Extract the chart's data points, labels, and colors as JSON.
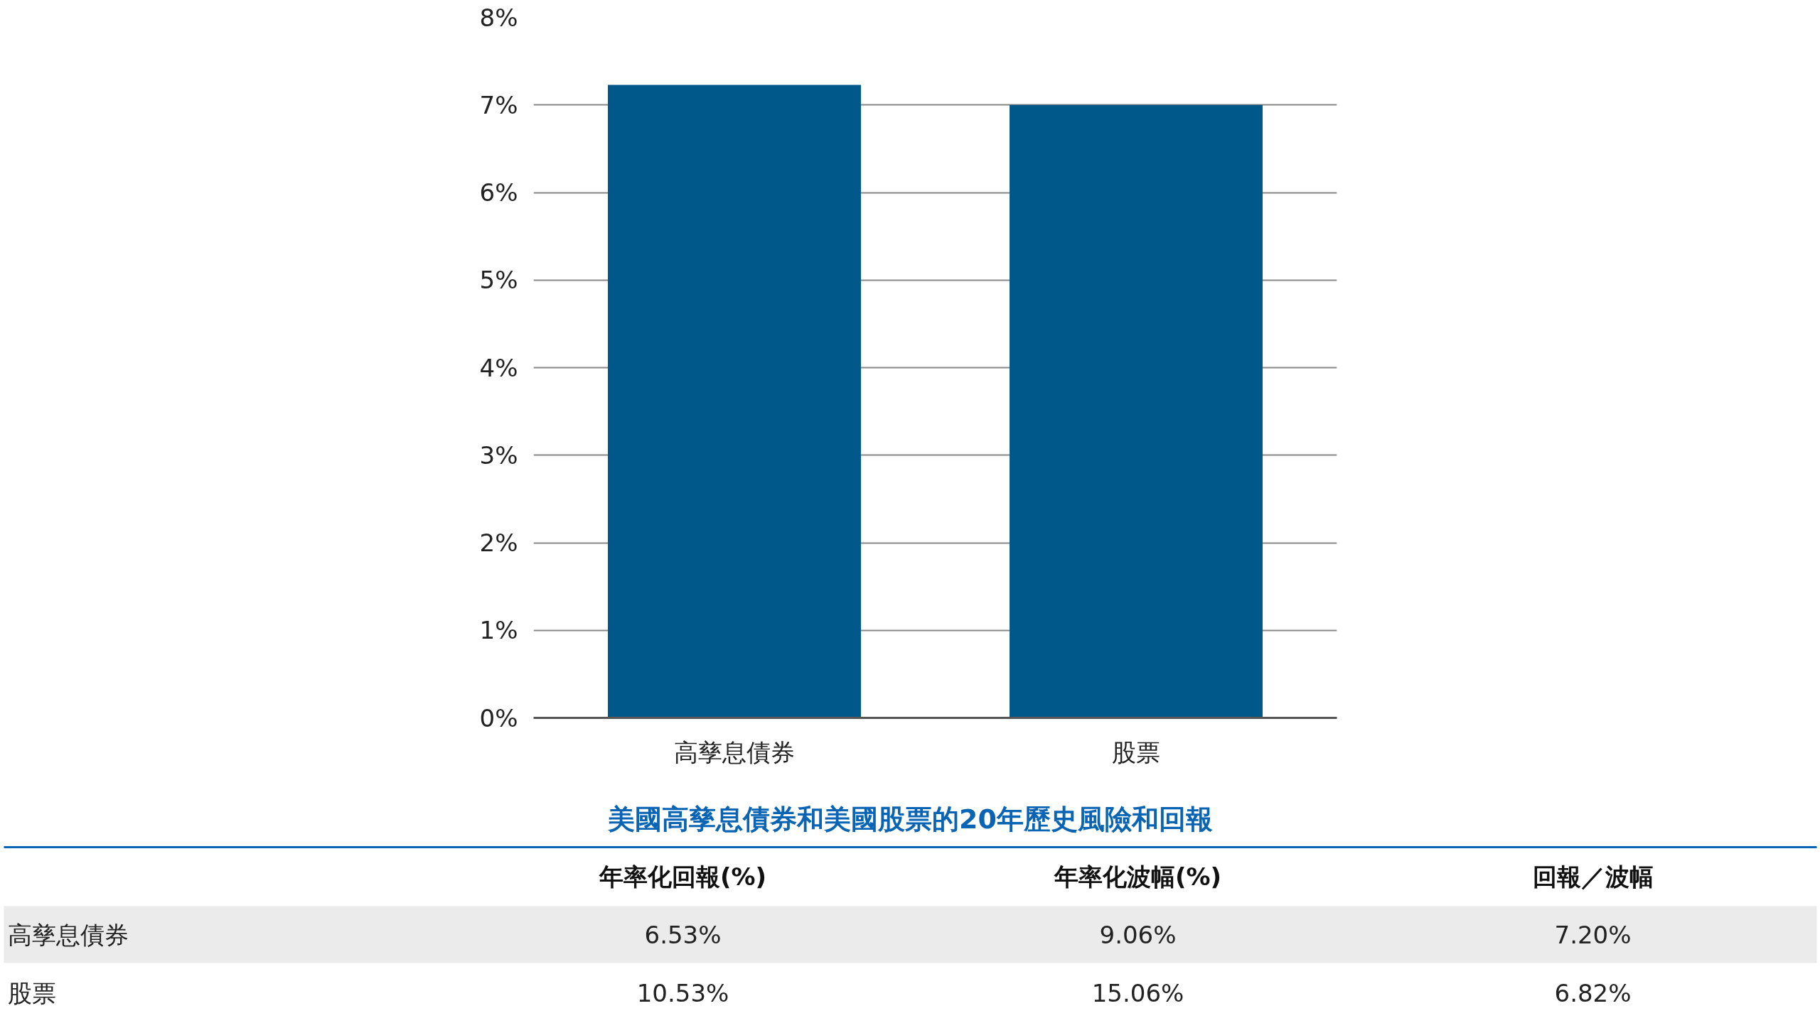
{
  "chart_data": [
    {
      "type": "bar",
      "categories": [
        "高孳息債券",
        "股票"
      ],
      "values": [
        7.23,
        7.0
      ],
      "color": "#00578a",
      "ylim": [
        0,
        8
      ],
      "yticks": [
        {
          "value": 0,
          "label": "0%"
        },
        {
          "value": 1,
          "label": "1%"
        },
        {
          "value": 2,
          "label": "2%"
        },
        {
          "value": 3,
          "label": "3%"
        },
        {
          "value": 4,
          "label": "4%"
        },
        {
          "value": 5,
          "label": "5%"
        },
        {
          "value": 6,
          "label": "6%"
        },
        {
          "value": 7,
          "label": "7%"
        },
        {
          "value": 8,
          "label": "8%"
        }
      ],
      "grid": "y"
    },
    {
      "type": "other",
      "title": "美國高孳息債券和美國股票的20年歷史風險和回報",
      "annotations": [
        "年率化回報(%)",
        "年率化波幅(%)",
        "回報／波幅",
        "高孳息債券",
        "6.53%",
        "9.06%",
        "7.20%",
        "股票",
        "10.53%",
        "15.06%",
        "6.82%"
      ]
    }
  ]
}
